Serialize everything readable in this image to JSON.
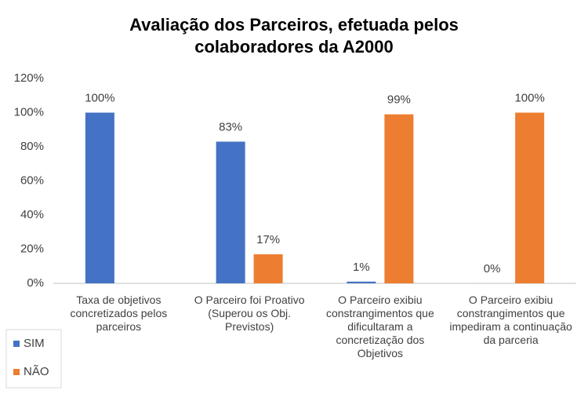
{
  "chart_data": {
    "type": "bar",
    "title": "Avaliação dos Parceiros, efetuada pelos colaboradores da A2000",
    "categories": [
      "Taxa de  objetivos concretizados pelos parceiros",
      "O Parceiro foi Proativo (Superou os Obj. Previstos)",
      "O Parceiro exibiu constrangimentos que dificultaram a concretização dos Objetivos",
      "O Parceiro exibiu constrangimentos que impediram a continuação da parceria"
    ],
    "series": [
      {
        "name": "SIM",
        "color": "#4472c4",
        "values": [
          100,
          83,
          1,
          0
        ],
        "value_labels": [
          "100%",
          "83%",
          "1%",
          "0%"
        ]
      },
      {
        "name": "NÃO",
        "color": "#ed7d31",
        "values": [
          null,
          17,
          99,
          100
        ],
        "value_labels": [
          null,
          "17%",
          "99%",
          "100%"
        ]
      }
    ],
    "ylim": [
      0,
      120
    ],
    "yticks": [
      {
        "value": 0,
        "label": "0%"
      },
      {
        "value": 20,
        "label": "20%"
      },
      {
        "value": 40,
        "label": "40%"
      },
      {
        "value": 60,
        "label": "60%"
      },
      {
        "value": 80,
        "label": "80%"
      },
      {
        "value": 100,
        "label": "100%"
      },
      {
        "value": 120,
        "label": "120%"
      }
    ],
    "legend": "bottom-left"
  }
}
